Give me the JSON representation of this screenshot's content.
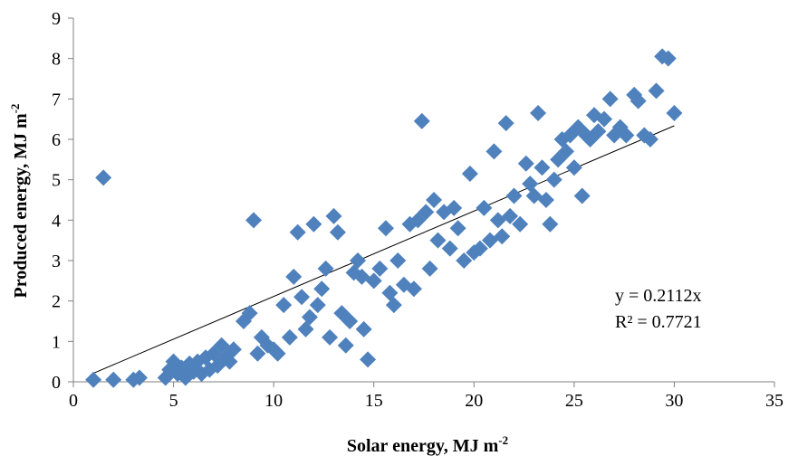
{
  "chart_data": {
    "type": "scatter",
    "xlabel": "Solar energy, MJ m",
    "xlabel_sup": "-2",
    "ylabel": "Produced energy, MJ m",
    "ylabel_sup": "-2",
    "xlim": [
      0,
      35
    ],
    "ylim": [
      0,
      9
    ],
    "xticks": [
      "0",
      "5",
      "10",
      "15",
      "20",
      "25",
      "30",
      "35"
    ],
    "yticks": [
      "0",
      "1",
      "2",
      "3",
      "4",
      "5",
      "6",
      "7",
      "8",
      "9"
    ],
    "grid": false,
    "legend": "none",
    "marker_color": "#4F81BD",
    "trendline": {
      "slope": 0.2112,
      "x_range": [
        1,
        30
      ],
      "color": "#000000"
    },
    "annotations": {
      "equation": "y = 0.2112x",
      "r2": "R² = 0.7721"
    },
    "points": [
      [
        1.0,
        0.05
      ],
      [
        1.5,
        5.05
      ],
      [
        2.0,
        0.05
      ],
      [
        3.0,
        0.05
      ],
      [
        3.3,
        0.1
      ],
      [
        4.6,
        0.1
      ],
      [
        4.8,
        0.3
      ],
      [
        5.0,
        0.5
      ],
      [
        5.2,
        0.2
      ],
      [
        5.4,
        0.35
      ],
      [
        5.6,
        0.1
      ],
      [
        5.8,
        0.45
      ],
      [
        6.0,
        0.25
      ],
      [
        6.2,
        0.5
      ],
      [
        6.4,
        0.2
      ],
      [
        6.6,
        0.6
      ],
      [
        6.8,
        0.3
      ],
      [
        7.0,
        0.7
      ],
      [
        7.2,
        0.4
      ],
      [
        7.4,
        0.9
      ],
      [
        7.6,
        0.6
      ],
      [
        7.8,
        0.5
      ],
      [
        8.0,
        0.8
      ],
      [
        8.5,
        1.5
      ],
      [
        8.8,
        1.7
      ],
      [
        9.0,
        4.0
      ],
      [
        9.2,
        0.7
      ],
      [
        9.4,
        1.1
      ],
      [
        9.7,
        0.9
      ],
      [
        10.0,
        0.8
      ],
      [
        10.2,
        0.7
      ],
      [
        10.5,
        1.9
      ],
      [
        10.8,
        1.1
      ],
      [
        11.0,
        2.6
      ],
      [
        11.2,
        3.7
      ],
      [
        11.4,
        2.1
      ],
      [
        11.6,
        1.3
      ],
      [
        11.8,
        1.6
      ],
      [
        12.0,
        3.9
      ],
      [
        12.2,
        1.9
      ],
      [
        12.4,
        2.3
      ],
      [
        12.6,
        2.8
      ],
      [
        12.8,
        1.1
      ],
      [
        13.0,
        4.1
      ],
      [
        13.2,
        3.7
      ],
      [
        13.4,
        1.7
      ],
      [
        13.6,
        0.9
      ],
      [
        13.8,
        1.5
      ],
      [
        14.0,
        2.7
      ],
      [
        14.2,
        3.0
      ],
      [
        14.4,
        2.6
      ],
      [
        14.5,
        1.3
      ],
      [
        14.7,
        0.55
      ],
      [
        15.0,
        2.5
      ],
      [
        15.3,
        2.8
      ],
      [
        15.6,
        3.8
      ],
      [
        15.8,
        2.2
      ],
      [
        16.0,
        1.9
      ],
      [
        16.2,
        3.0
      ],
      [
        16.5,
        2.4
      ],
      [
        16.8,
        3.9
      ],
      [
        17.0,
        2.3
      ],
      [
        17.2,
        4.0
      ],
      [
        17.4,
        6.45
      ],
      [
        17.6,
        4.2
      ],
      [
        17.8,
        2.8
      ],
      [
        18.0,
        4.5
      ],
      [
        18.2,
        3.5
      ],
      [
        18.5,
        4.2
      ],
      [
        18.8,
        3.3
      ],
      [
        19.0,
        4.3
      ],
      [
        19.2,
        3.8
      ],
      [
        19.5,
        3.0
      ],
      [
        19.8,
        5.15
      ],
      [
        20.0,
        3.2
      ],
      [
        20.3,
        3.3
      ],
      [
        20.5,
        4.3
      ],
      [
        20.8,
        3.5
      ],
      [
        21.0,
        5.7
      ],
      [
        21.2,
        4.0
      ],
      [
        21.4,
        3.6
      ],
      [
        21.6,
        6.4
      ],
      [
        21.8,
        4.1
      ],
      [
        22.0,
        4.6
      ],
      [
        22.3,
        3.9
      ],
      [
        22.6,
        5.4
      ],
      [
        22.8,
        4.9
      ],
      [
        23.0,
        4.6
      ],
      [
        23.2,
        6.65
      ],
      [
        23.4,
        5.3
      ],
      [
        23.6,
        4.5
      ],
      [
        23.8,
        3.9
      ],
      [
        24.0,
        5.0
      ],
      [
        24.2,
        5.5
      ],
      [
        24.4,
        6.0
      ],
      [
        24.6,
        5.7
      ],
      [
        24.8,
        6.1
      ],
      [
        25.0,
        5.3
      ],
      [
        25.2,
        6.3
      ],
      [
        25.4,
        4.6
      ],
      [
        25.6,
        6.1
      ],
      [
        25.8,
        6.0
      ],
      [
        26.0,
        6.6
      ],
      [
        26.2,
        6.2
      ],
      [
        26.5,
        6.5
      ],
      [
        26.8,
        7.0
      ],
      [
        27.0,
        6.1
      ],
      [
        27.3,
        6.3
      ],
      [
        27.6,
        6.1
      ],
      [
        28.0,
        7.1
      ],
      [
        28.2,
        6.95
      ],
      [
        28.5,
        6.1
      ],
      [
        28.8,
        6.0
      ],
      [
        29.1,
        7.2
      ],
      [
        29.4,
        8.05
      ],
      [
        29.7,
        8.0
      ],
      [
        30.0,
        6.65
      ]
    ]
  }
}
